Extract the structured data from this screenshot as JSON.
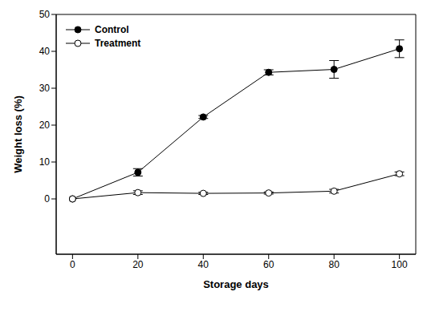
{
  "chart_data": {
    "type": "line",
    "x_label": "Storage days",
    "y_label": "Weight loss (%)",
    "x": [
      0,
      20,
      40,
      60,
      80,
      100
    ],
    "series": [
      {
        "name": "Control",
        "color": "#000000",
        "marker": "filled_circle",
        "values": [
          0,
          7.2,
          22.2,
          34.3,
          35.1,
          40.7
        ],
        "errors": [
          0,
          1.0,
          0.4,
          0.7,
          2.4,
          2.4
        ]
      },
      {
        "name": "Treatment",
        "color": "#000000",
        "marker": "open_circle",
        "values": [
          0,
          1.7,
          1.5,
          1.6,
          2.1,
          6.8
        ],
        "errors": [
          0,
          0.5,
          0.3,
          0.3,
          0.5,
          0.5
        ]
      }
    ],
    "xlim": [
      -5,
      105
    ],
    "ylim": [
      -15,
      50
    ],
    "xticks": [
      0,
      20,
      40,
      60,
      80,
      100
    ],
    "yticks": [
      0,
      10,
      20,
      30,
      40,
      50
    ],
    "legend": "upper left",
    "grid": false
  }
}
